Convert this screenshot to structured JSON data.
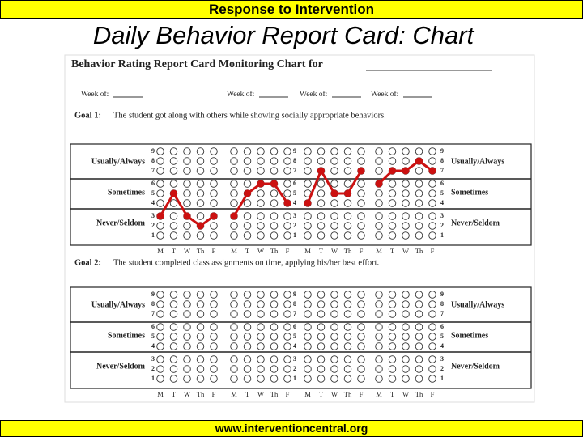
{
  "header": "Response to Intervention",
  "title": "Daily Behavior Report Card: Chart",
  "form": {
    "title": "Behavior Rating Report Card Monitoring Chart for",
    "week_label": "Week of:",
    "row_labels": [
      "Usually/Always",
      "Sometimes",
      "Never/Seldom"
    ],
    "scale": [
      9,
      8,
      7,
      6,
      5,
      4,
      3,
      2,
      1
    ],
    "days": [
      "M",
      "T",
      "W",
      "Th",
      "F"
    ],
    "goals": [
      {
        "label": "Goal 1:",
        "text": "The student got along with others while showing socially appropriate behaviors.",
        "ratings": [
          [
            3,
            5,
            3,
            2,
            3
          ],
          [
            3,
            5,
            6,
            6,
            4
          ],
          [
            4,
            7,
            5,
            5,
            7
          ],
          [
            6,
            7,
            7,
            8,
            7
          ]
        ]
      },
      {
        "label": "Goal 2:",
        "text": "The student completed class assignments on time, applying his/her best effort."
      }
    ]
  },
  "footer": "www.interventioncentral.org"
}
